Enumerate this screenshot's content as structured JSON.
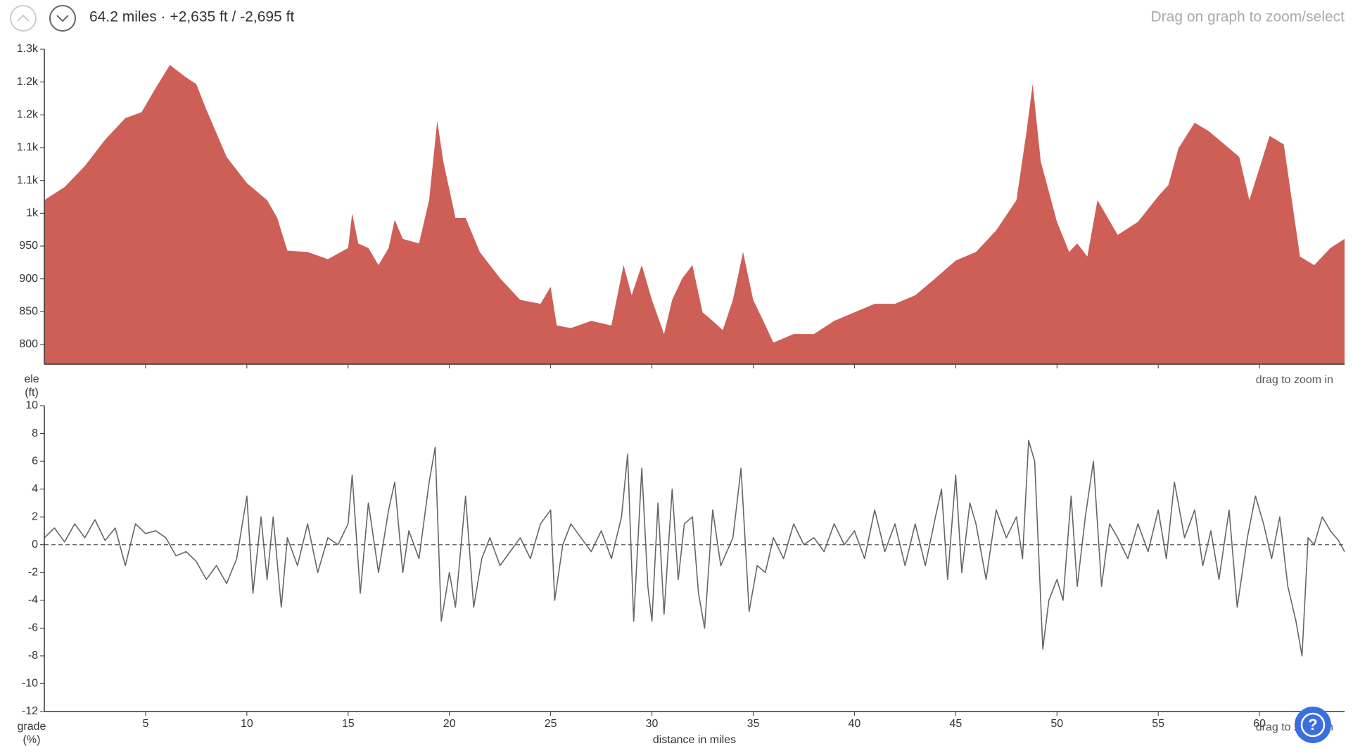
{
  "header": {
    "summary": "64.2 miles · +2,635 ft / -2,695 ft",
    "hint": "Drag on graph to zoom/select",
    "help": "?"
  },
  "chart_data": [
    {
      "type": "area",
      "y_label": "ele\n(ft)",
      "note": "drag to zoom in",
      "color": "#cd5f57",
      "xlim": [
        0,
        64.2
      ],
      "ylim": [
        770,
        1250
      ],
      "yticks": [
        {
          "value": 800,
          "label": "800"
        },
        {
          "value": 850,
          "label": "850"
        },
        {
          "value": 900,
          "label": "900"
        },
        {
          "value": 950,
          "label": "950"
        },
        {
          "value": 1000,
          "label": "1k"
        },
        {
          "value": 1050,
          "label": "1.1k"
        },
        {
          "value": 1100,
          "label": "1.1k"
        },
        {
          "value": 1150,
          "label": "1.2k"
        },
        {
          "value": 1200,
          "label": "1.2k"
        },
        {
          "value": 1250,
          "label": "1.3k"
        }
      ],
      "x": [
        0,
        1,
        2,
        3,
        4,
        4.8,
        5.5,
        6.2,
        7,
        7.5,
        8,
        9,
        10,
        11,
        11.5,
        12,
        13,
        14,
        15,
        15.2,
        15.5,
        16,
        16.5,
        17,
        17.3,
        17.7,
        18.5,
        19,
        19.4,
        19.7,
        20.3,
        20.8,
        21.5,
        22.5,
        23.5,
        24.5,
        25,
        25.3,
        26,
        27,
        28,
        28.6,
        29,
        29.5,
        30,
        30.6,
        31,
        31.5,
        32,
        32.5,
        33,
        33.5,
        34,
        34.5,
        35,
        35.5,
        36,
        37,
        38,
        39,
        40,
        41,
        42,
        43,
        44,
        45,
        46,
        47,
        48,
        48.5,
        48.8,
        49.2,
        50,
        50.6,
        51,
        51.5,
        52,
        53,
        54,
        55,
        55.5,
        56,
        56.8,
        57.5,
        58.5,
        59,
        59.5,
        60.5,
        61.2,
        62,
        62.7,
        63.5,
        64.2
      ],
      "values": [
        1020,
        1040,
        1072,
        1112,
        1145,
        1154,
        1191,
        1226,
        1207,
        1197,
        1158,
        1086,
        1046,
        1020,
        993,
        943,
        941,
        930,
        947,
        1000,
        954,
        947,
        921,
        947,
        990,
        961,
        954,
        1020,
        1141,
        1079,
        993,
        993,
        941,
        901,
        868,
        862,
        888,
        829,
        825,
        836,
        829,
        921,
        875,
        921,
        868,
        816,
        868,
        901,
        921,
        849,
        836,
        822,
        868,
        941,
        868,
        836,
        803,
        816,
        816,
        836,
        849,
        862,
        862,
        875,
        901,
        928,
        941,
        974,
        1020,
        1125,
        1197,
        1079,
        987,
        941,
        954,
        934,
        1020,
        967,
        987,
        1026,
        1043,
        1099,
        1138,
        1125,
        1099,
        1086,
        1020,
        1118,
        1105,
        934,
        921,
        947,
        961
      ]
    },
    {
      "type": "line",
      "y_label": "grade\n(%)",
      "x_label": "distance in miles",
      "note": "drag to zoom in",
      "color": "#666666",
      "zero_line": true,
      "xlim": [
        0,
        64.2
      ],
      "ylim": [
        -12,
        10
      ],
      "xticks": [
        5,
        10,
        15,
        20,
        25,
        30,
        35,
        40,
        45,
        50,
        55,
        60
      ],
      "yticks": [
        -12,
        -10,
        -8,
        -6,
        -4,
        -2,
        0,
        2,
        4,
        6,
        8,
        10
      ],
      "x": [
        0,
        0.5,
        1,
        1.5,
        2,
        2.5,
        3,
        3.5,
        4,
        4.5,
        5,
        5.5,
        6,
        6.5,
        7,
        7.5,
        8,
        8.5,
        9,
        9.5,
        10,
        10.3,
        10.7,
        11,
        11.3,
        11.7,
        12,
        12.5,
        13,
        13.5,
        14,
        14.5,
        15,
        15.2,
        15.6,
        16,
        16.5,
        17,
        17.3,
        17.7,
        18,
        18.5,
        19,
        19.3,
        19.6,
        20,
        20.3,
        20.8,
        21.2,
        21.6,
        22,
        22.5,
        23,
        23.5,
        24,
        24.5,
        25,
        25.2,
        25.6,
        26,
        26.5,
        27,
        27.5,
        28,
        28.5,
        28.8,
        29.1,
        29.5,
        29.8,
        30,
        30.3,
        30.6,
        31,
        31.3,
        31.6,
        32,
        32.3,
        32.6,
        33,
        33.4,
        34,
        34.4,
        34.8,
        35.2,
        35.6,
        36,
        36.5,
        37,
        37.5,
        38,
        38.5,
        39,
        39.5,
        40,
        40.5,
        41,
        41.5,
        42,
        42.5,
        43,
        43.5,
        44,
        44.3,
        44.6,
        45,
        45.3,
        45.7,
        46,
        46.5,
        47,
        47.5,
        48,
        48.3,
        48.6,
        48.9,
        49.3,
        49.6,
        50,
        50.3,
        50.7,
        51,
        51.4,
        51.8,
        52.2,
        52.6,
        53,
        53.5,
        54,
        54.5,
        55,
        55.4,
        55.8,
        56.3,
        56.8,
        57.2,
        57.6,
        58,
        58.5,
        58.9,
        59.4,
        59.8,
        60.2,
        60.6,
        61,
        61.4,
        61.8,
        62.1,
        62.4,
        62.7,
        63.1,
        63.5,
        63.9,
        64.2
      ],
      "values": [
        0.5,
        1.2,
        0.2,
        1.5,
        0.5,
        1.8,
        0.3,
        1.2,
        -1.5,
        1.5,
        0.8,
        1.0,
        0.5,
        -0.8,
        -0.5,
        -1.2,
        -2.5,
        -1.5,
        -2.8,
        -1.0,
        3.5,
        -3.5,
        2.0,
        -2.5,
        2.0,
        -4.5,
        0.5,
        -1.5,
        1.5,
        -2.0,
        0.5,
        0.0,
        1.5,
        5.0,
        -3.5,
        3.0,
        -2.0,
        2.5,
        4.5,
        -2.0,
        1.0,
        -1.0,
        4.5,
        7.0,
        -5.5,
        -2.0,
        -4.5,
        3.5,
        -4.5,
        -1.0,
        0.5,
        -1.5,
        -0.5,
        0.5,
        -1.0,
        1.5,
        2.5,
        -4.0,
        0.0,
        1.5,
        0.5,
        -0.5,
        1.0,
        -1.0,
        2.0,
        6.5,
        -5.5,
        5.5,
        -3.0,
        -5.5,
        3.0,
        -5.0,
        4.0,
        -2.5,
        1.5,
        2.0,
        -3.5,
        -6.0,
        2.5,
        -1.5,
        0.5,
        5.5,
        -4.8,
        -1.5,
        -2.0,
        0.5,
        -1.0,
        1.5,
        0.0,
        0.5,
        -0.5,
        1.5,
        0.0,
        1.0,
        -1.0,
        2.5,
        -0.5,
        1.5,
        -1.5,
        1.5,
        -1.5,
        2.0,
        4.0,
        -2.5,
        5.0,
        -2.0,
        3.0,
        1.5,
        -2.5,
        2.5,
        0.5,
        2.0,
        -1.0,
        7.5,
        6.0,
        -7.5,
        -4.0,
        -2.5,
        -4.0,
        3.5,
        -3.0,
        2.0,
        6.0,
        -3.0,
        1.5,
        0.5,
        -1.0,
        1.5,
        -0.5,
        2.5,
        -1.0,
        4.5,
        0.5,
        2.5,
        -1.5,
        1.0,
        -2.5,
        2.5,
        -4.5,
        0.5,
        3.5,
        1.5,
        -1.0,
        2.0,
        -3.0,
        -5.5,
        -8.0,
        0.5,
        0.0,
        2.0,
        1.0,
        0.3,
        -0.5
      ]
    }
  ]
}
